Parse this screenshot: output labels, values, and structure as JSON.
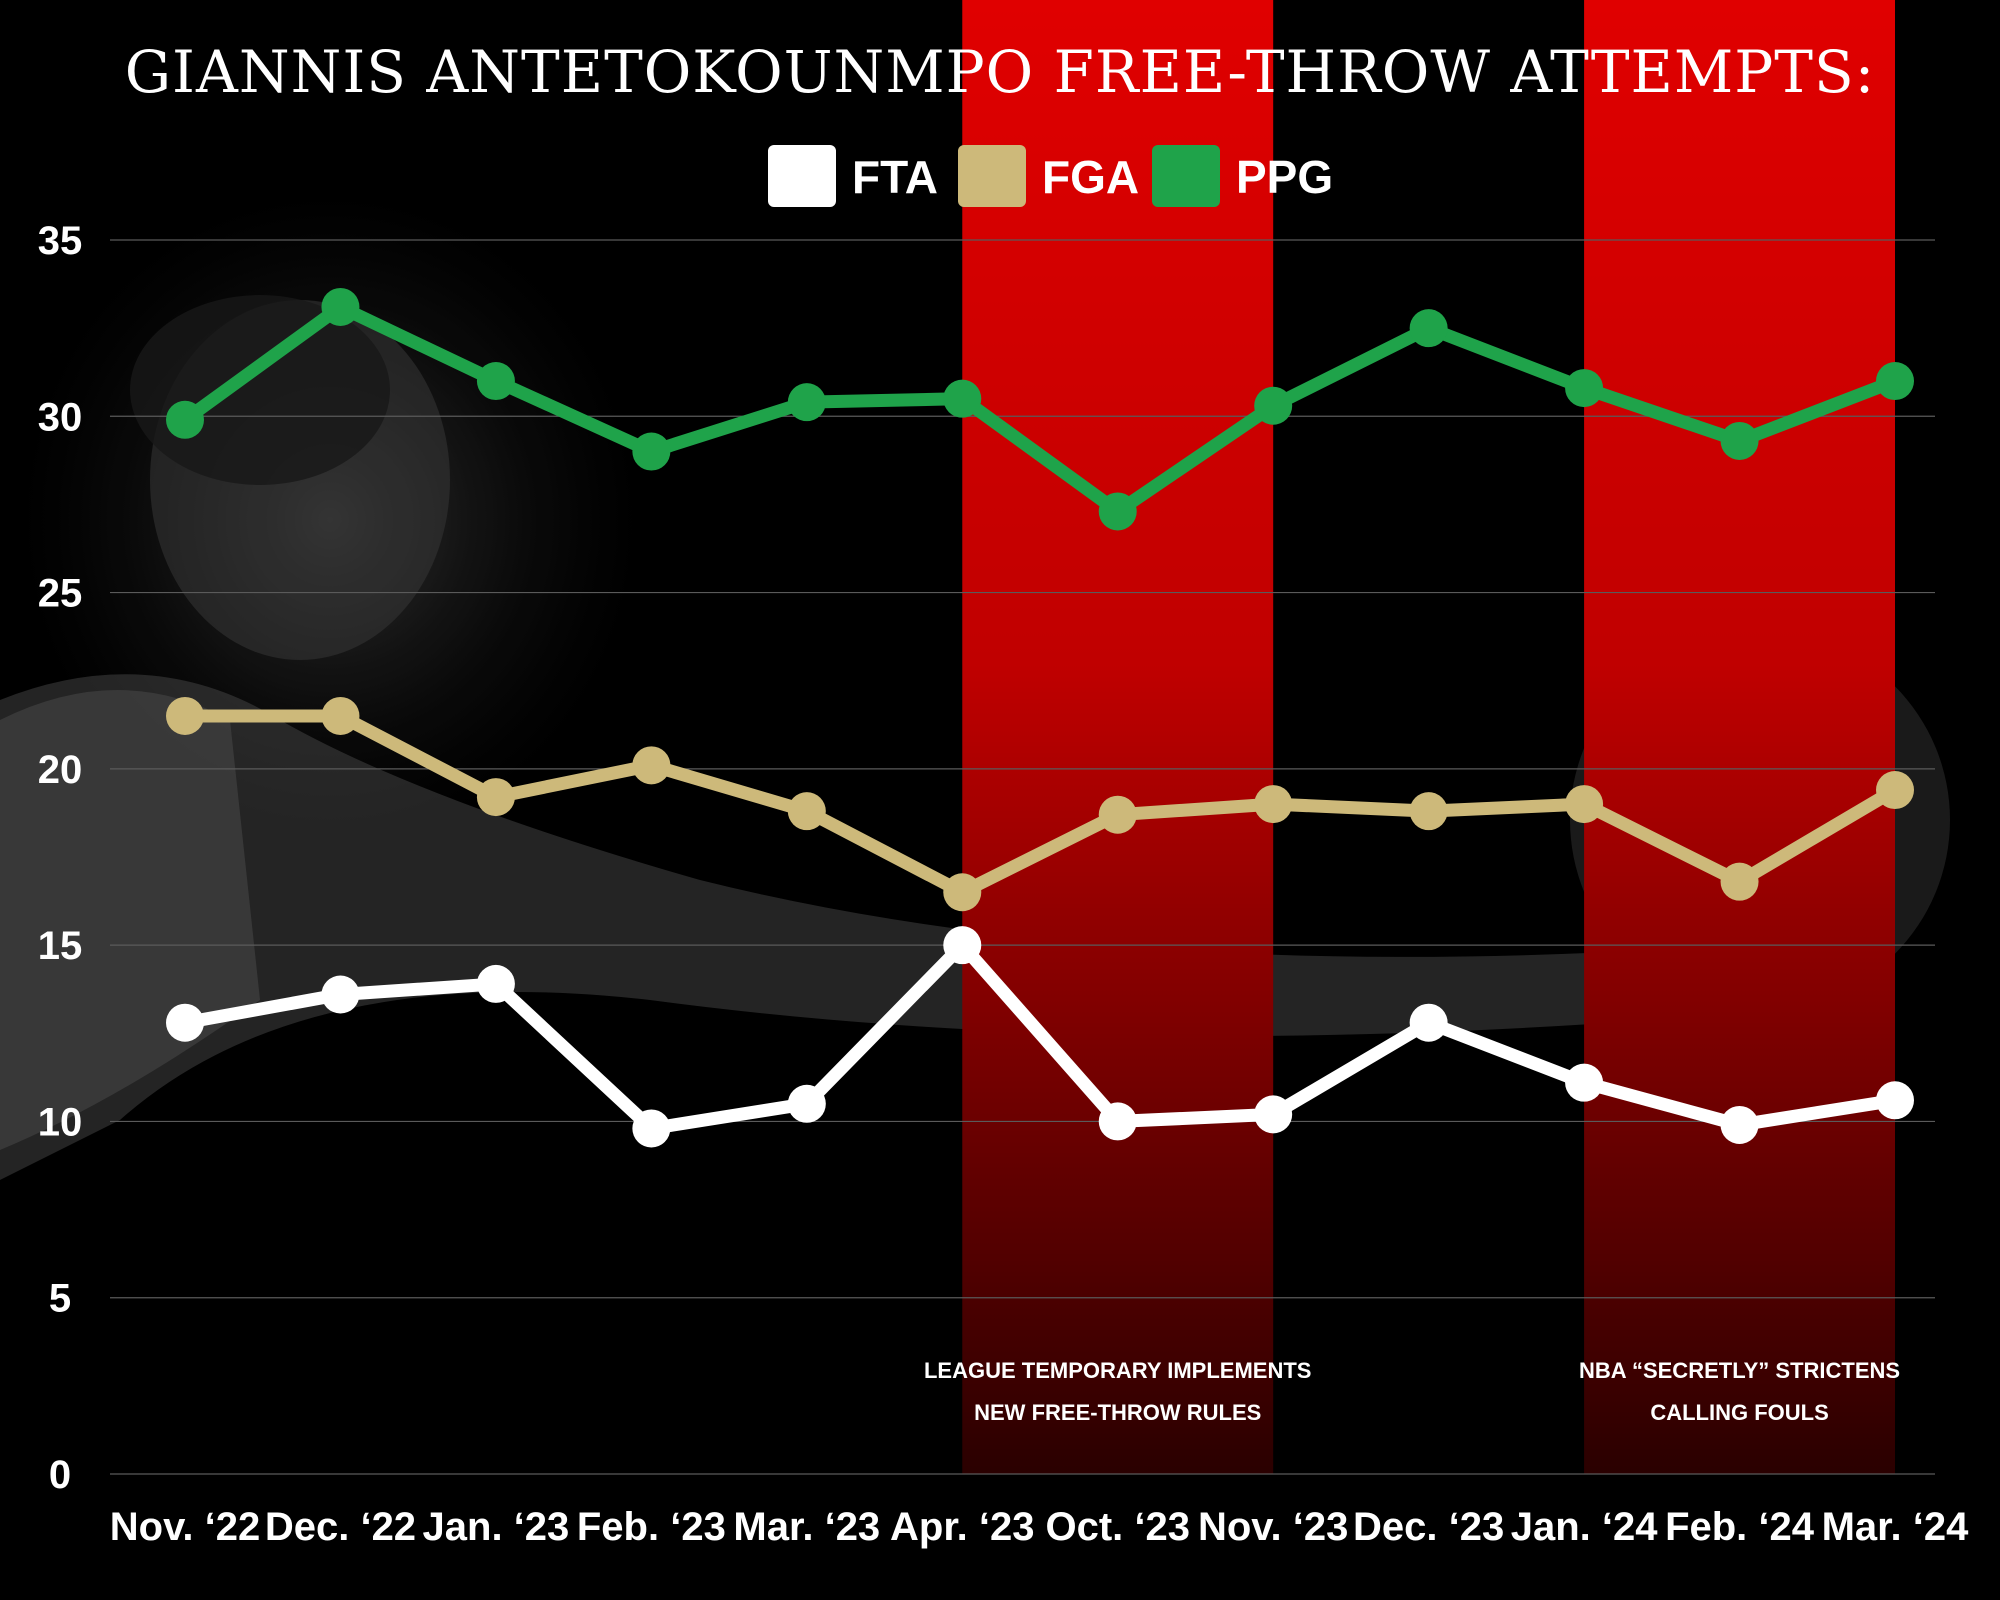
{
  "chart_data": {
    "type": "line",
    "title": "GIANNIS ANTETOKOUNMPO FREE-THROW ATTEMPTS:",
    "categories": [
      "Nov. ‘22",
      "Dec. ‘22",
      "Jan. ‘23",
      "Feb. ‘23",
      "Mar. ‘23",
      "Apr. ‘23",
      "Oct. ‘23",
      "Nov. ‘23",
      "Dec. ‘23",
      "Jan. ‘24",
      "Feb. ‘24",
      "Mar. ‘24"
    ],
    "ylim": [
      0,
      35
    ],
    "yticks": [
      0,
      5,
      10,
      15,
      20,
      25,
      30,
      35
    ],
    "grid": true,
    "legend_position": "top-center",
    "series": [
      {
        "name": "FTA",
        "color": "#ffffff",
        "values": [
          12.8,
          13.6,
          13.9,
          9.8,
          10.5,
          15.0,
          10.0,
          10.2,
          12.8,
          11.1,
          9.9,
          10.6
        ]
      },
      {
        "name": "FGA",
        "color": "#cdb97a",
        "values": [
          21.5,
          21.5,
          19.2,
          20.1,
          18.8,
          16.5,
          18.7,
          19.0,
          18.8,
          19.0,
          16.8,
          19.4
        ]
      },
      {
        "name": "PPG",
        "color": "#1fa34a",
        "values": [
          29.9,
          33.1,
          31.0,
          29.0,
          30.4,
          30.5,
          27.3,
          30.3,
          32.5,
          30.8,
          29.3,
          31.0
        ]
      }
    ],
    "highlight_bands": [
      {
        "from": "Apr. ‘23",
        "to": "Nov. ‘23",
        "color": "#e00000",
        "annotation": [
          "LEAGUE TEMPORARY IMPLEMENTS",
          "NEW FREE-THROW RULES"
        ]
      },
      {
        "from": "Jan. ‘24",
        "to": "Mar. ‘24",
        "color": "#e00000",
        "annotation": [
          "NBA “SECRETLY” STRICTENS",
          "CALLING FOULS"
        ]
      }
    ]
  }
}
